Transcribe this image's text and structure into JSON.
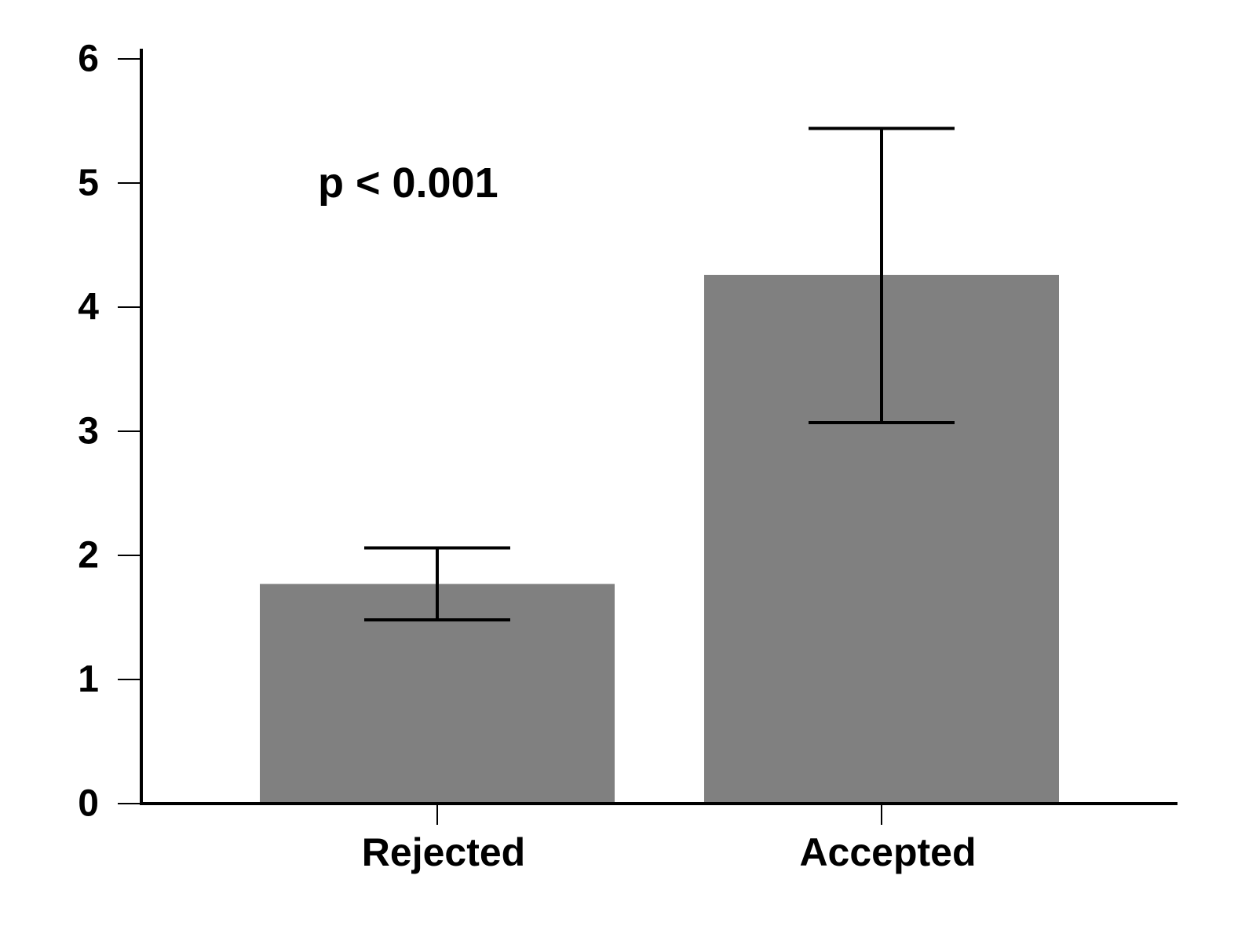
{
  "chart_data": {
    "type": "bar",
    "title": "",
    "xlabel": "",
    "ylabel": "",
    "categories": [
      "Rejected",
      "Accepted"
    ],
    "values": [
      1.77,
      4.26
    ],
    "error_bars": [
      {
        "lower": 1.48,
        "upper": 2.06
      },
      {
        "lower": 3.07,
        "upper": 5.44
      }
    ],
    "ylim": [
      0,
      6
    ],
    "yticks": [
      "0",
      "1",
      "2",
      "3",
      "4",
      "5",
      "6"
    ],
    "annotation": "p < 0.001",
    "bar_color": "#808080",
    "axis_color": "#000000",
    "grid": false,
    "legend": "none"
  }
}
